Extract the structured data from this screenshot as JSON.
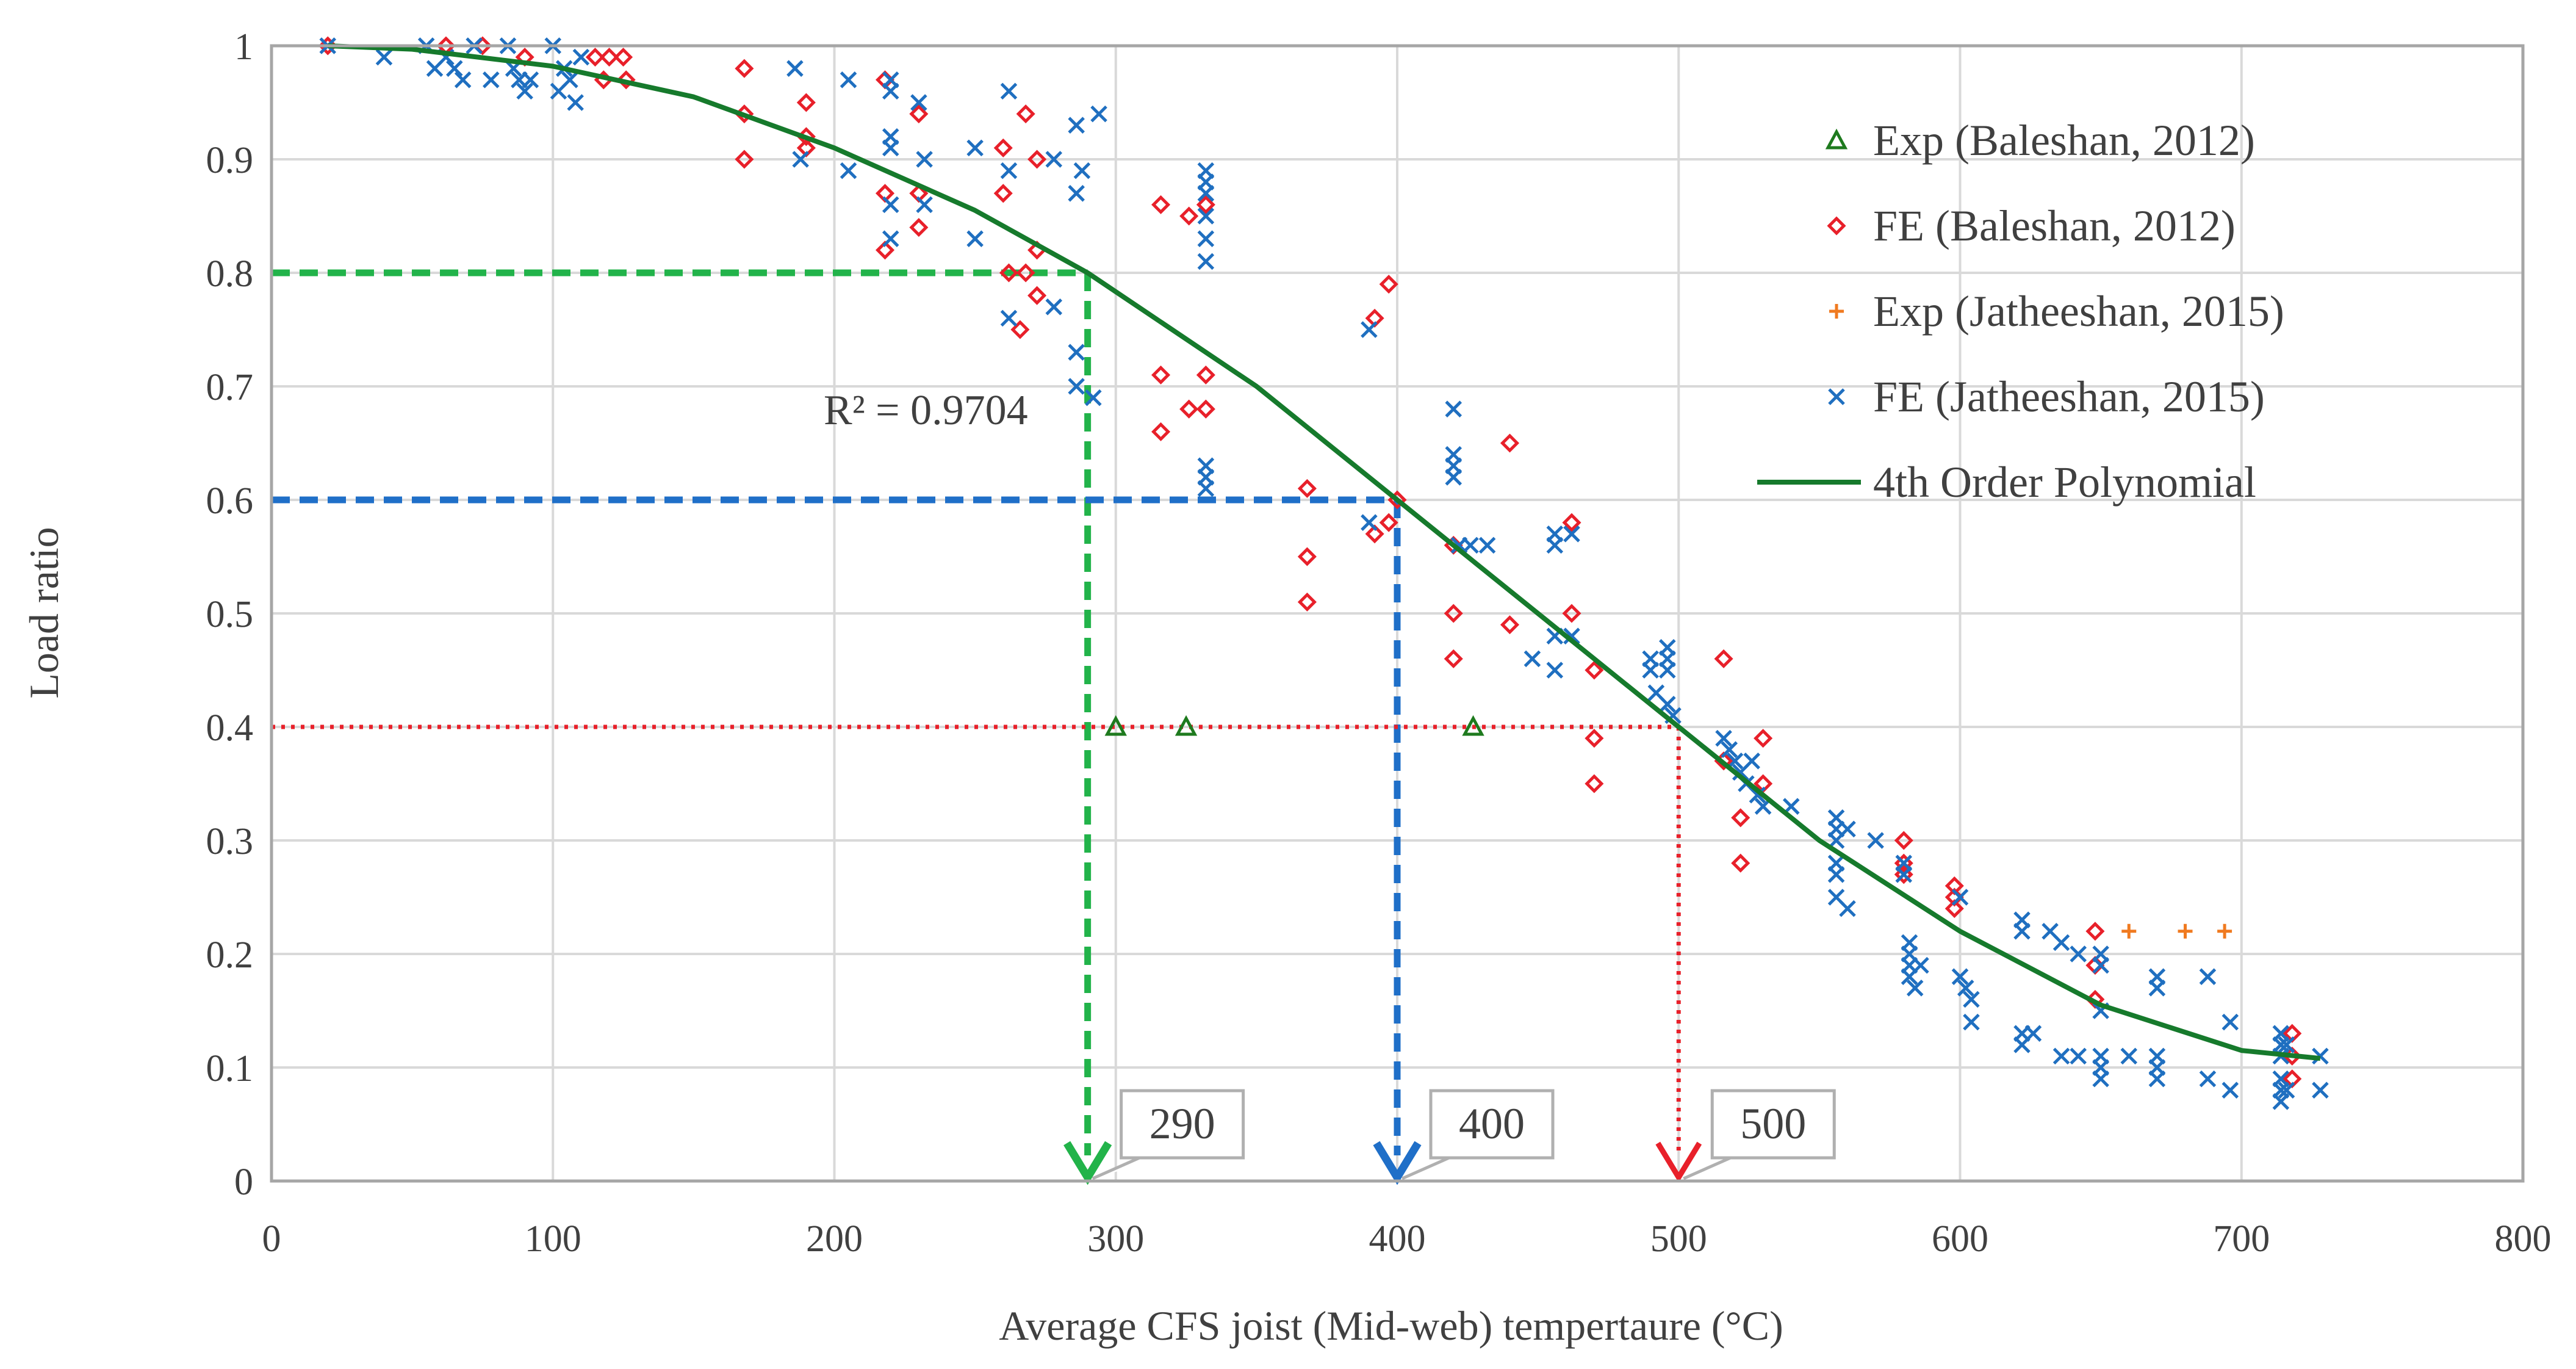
{
  "chart_data": {
    "type": "scatter",
    "title": "",
    "xlabel": "Average CFS joist (Mid-web) tempertaure (°C)",
    "ylabel": "Load ratio",
    "xlim": [
      0,
      800
    ],
    "ylim": [
      0,
      1
    ],
    "x_ticks": [
      "0",
      "100",
      "200",
      "300",
      "400",
      "500",
      "600",
      "700",
      "800"
    ],
    "y_ticks": [
      "0",
      "0.1",
      "0.2",
      "0.3",
      "0.4",
      "0.5",
      "0.6",
      "0.7",
      "0.8",
      "0.9",
      "1"
    ],
    "grid": true,
    "legend_position": "top-right",
    "colors": {
      "exp_baleshan": "#1e7a1e",
      "fe_baleshan": "#e8202a",
      "exp_jatheeshan": "#f07a20",
      "fe_jatheeshan": "#1f6fc0",
      "polynomial": "#167a2c",
      "guide_green": "#22b34a",
      "guide_blue": "#1f6fc8",
      "guide_red": "#e8202a",
      "grid": "#d9d9d9",
      "axis": "#a6a6a6"
    },
    "series": [
      {
        "name": "Exp (Baleshan, 2012)",
        "marker": "triangle",
        "points": [
          [
            300,
            0.4
          ],
          [
            325,
            0.4
          ],
          [
            427,
            0.4
          ]
        ]
      },
      {
        "name": "FE (Baleshan, 2012)",
        "marker": "diamond",
        "points": [
          [
            20,
            1.0
          ],
          [
            62,
            1.0
          ],
          [
            75,
            1.0
          ],
          [
            90,
            0.99
          ],
          [
            115,
            0.99
          ],
          [
            120,
            0.99
          ],
          [
            125,
            0.99
          ],
          [
            118,
            0.97
          ],
          [
            126,
            0.97
          ],
          [
            168,
            0.98
          ],
          [
            168,
            0.94
          ],
          [
            168,
            0.9
          ],
          [
            190,
            0.95
          ],
          [
            190,
            0.92
          ],
          [
            190,
            0.91
          ],
          [
            218,
            0.97
          ],
          [
            218,
            0.87
          ],
          [
            230,
            0.94
          ],
          [
            230,
            0.87
          ],
          [
            230,
            0.84
          ],
          [
            218,
            0.82
          ],
          [
            260,
            0.91
          ],
          [
            260,
            0.87
          ],
          [
            268,
            0.94
          ],
          [
            272,
            0.9
          ],
          [
            272,
            0.82
          ],
          [
            262,
            0.8
          ],
          [
            268,
            0.8
          ],
          [
            272,
            0.78
          ],
          [
            266,
            0.75
          ],
          [
            316,
            0.86
          ],
          [
            326,
            0.85
          ],
          [
            332,
            0.86
          ],
          [
            316,
            0.71
          ],
          [
            316,
            0.66
          ],
          [
            326,
            0.68
          ],
          [
            332,
            0.71
          ],
          [
            332,
            0.68
          ],
          [
            368,
            0.61
          ],
          [
            368,
            0.55
          ],
          [
            368,
            0.51
          ],
          [
            392,
            0.76
          ],
          [
            397,
            0.79
          ],
          [
            392,
            0.57
          ],
          [
            397,
            0.58
          ],
          [
            400,
            0.6
          ],
          [
            420,
            0.56
          ],
          [
            420,
            0.5
          ],
          [
            420,
            0.46
          ],
          [
            440,
            0.65
          ],
          [
            440,
            0.49
          ],
          [
            462,
            0.58
          ],
          [
            462,
            0.5
          ],
          [
            470,
            0.45
          ],
          [
            470,
            0.39
          ],
          [
            470,
            0.35
          ],
          [
            516,
            0.46
          ],
          [
            516,
            0.37
          ],
          [
            522,
            0.32
          ],
          [
            522,
            0.28
          ],
          [
            530,
            0.39
          ],
          [
            530,
            0.35
          ],
          [
            580,
            0.3
          ],
          [
            580,
            0.28
          ],
          [
            580,
            0.27
          ],
          [
            598,
            0.26
          ],
          [
            598,
            0.25
          ],
          [
            598,
            0.24
          ],
          [
            648,
            0.22
          ],
          [
            648,
            0.19
          ],
          [
            648,
            0.16
          ],
          [
            718,
            0.13
          ],
          [
            718,
            0.11
          ],
          [
            718,
            0.09
          ]
        ]
      },
      {
        "name": "Exp (Jatheeshan, 2015)",
        "marker": "plus",
        "points": [
          [
            660,
            0.22
          ],
          [
            680,
            0.22
          ],
          [
            694,
            0.22
          ]
        ]
      },
      {
        "name": "FE (Jatheeshan, 2015)",
        "marker": "cross",
        "points": [
          [
            20,
            1.0
          ],
          [
            40,
            0.99
          ],
          [
            55,
            1.0
          ],
          [
            58,
            0.98
          ],
          [
            62,
            0.99
          ],
          [
            65,
            0.98
          ],
          [
            68,
            0.97
          ],
          [
            72,
            1.0
          ],
          [
            78,
            0.97
          ],
          [
            84,
            1.0
          ],
          [
            86,
            0.98
          ],
          [
            88,
            0.97
          ],
          [
            90,
            0.96
          ],
          [
            92,
            0.97
          ],
          [
            100,
            1.0
          ],
          [
            102,
            0.96
          ],
          [
            104,
            0.98
          ],
          [
            106,
            0.97
          ],
          [
            108,
            0.95
          ],
          [
            110,
            0.99
          ],
          [
            186,
            0.98
          ],
          [
            188,
            0.9
          ],
          [
            205,
            0.97
          ],
          [
            205,
            0.89
          ],
          [
            220,
            0.97
          ],
          [
            220,
            0.96
          ],
          [
            220,
            0.92
          ],
          [
            220,
            0.91
          ],
          [
            220,
            0.86
          ],
          [
            220,
            0.83
          ],
          [
            230,
            0.95
          ],
          [
            232,
            0.9
          ],
          [
            232,
            0.86
          ],
          [
            250,
            0.91
          ],
          [
            250,
            0.83
          ],
          [
            262,
            0.96
          ],
          [
            262,
            0.89
          ],
          [
            262,
            0.76
          ],
          [
            278,
            0.9
          ],
          [
            278,
            0.77
          ],
          [
            286,
            0.93
          ],
          [
            288,
            0.89
          ],
          [
            286,
            0.87
          ],
          [
            286,
            0.73
          ],
          [
            286,
            0.7
          ],
          [
            294,
            0.94
          ],
          [
            292,
            0.69
          ],
          [
            332,
            0.89
          ],
          [
            332,
            0.88
          ],
          [
            332,
            0.87
          ],
          [
            332,
            0.85
          ],
          [
            332,
            0.83
          ],
          [
            332,
            0.81
          ],
          [
            332,
            0.63
          ],
          [
            332,
            0.62
          ],
          [
            332,
            0.61
          ],
          [
            390,
            0.75
          ],
          [
            390,
            0.58
          ],
          [
            420,
            0.68
          ],
          [
            420,
            0.64
          ],
          [
            420,
            0.63
          ],
          [
            420,
            0.62
          ],
          [
            422,
            0.56
          ],
          [
            426,
            0.56
          ],
          [
            432,
            0.56
          ],
          [
            448,
            0.46
          ],
          [
            456,
            0.57
          ],
          [
            456,
            0.56
          ],
          [
            456,
            0.48
          ],
          [
            456,
            0.45
          ],
          [
            462,
            0.57
          ],
          [
            462,
            0.48
          ],
          [
            490,
            0.46
          ],
          [
            490,
            0.45
          ],
          [
            492,
            0.43
          ],
          [
            496,
            0.47
          ],
          [
            496,
            0.46
          ],
          [
            496,
            0.45
          ],
          [
            496,
            0.42
          ],
          [
            498,
            0.41
          ],
          [
            516,
            0.39
          ],
          [
            518,
            0.38
          ],
          [
            520,
            0.37
          ],
          [
            522,
            0.36
          ],
          [
            524,
            0.35
          ],
          [
            526,
            0.37
          ],
          [
            528,
            0.34
          ],
          [
            530,
            0.33
          ],
          [
            540,
            0.33
          ],
          [
            556,
            0.32
          ],
          [
            556,
            0.31
          ],
          [
            556,
            0.3
          ],
          [
            556,
            0.28
          ],
          [
            556,
            0.27
          ],
          [
            556,
            0.25
          ],
          [
            560,
            0.31
          ],
          [
            560,
            0.24
          ],
          [
            570,
            0.3
          ],
          [
            580,
            0.28
          ],
          [
            580,
            0.27
          ],
          [
            582,
            0.21
          ],
          [
            582,
            0.2
          ],
          [
            582,
            0.19
          ],
          [
            582,
            0.18
          ],
          [
            584,
            0.17
          ],
          [
            586,
            0.19
          ],
          [
            600,
            0.25
          ],
          [
            600,
            0.18
          ],
          [
            602,
            0.17
          ],
          [
            604,
            0.16
          ],
          [
            604,
            0.14
          ],
          [
            622,
            0.23
          ],
          [
            622,
            0.22
          ],
          [
            622,
            0.13
          ],
          [
            622,
            0.12
          ],
          [
            626,
            0.13
          ],
          [
            632,
            0.22
          ],
          [
            636,
            0.21
          ],
          [
            636,
            0.11
          ],
          [
            642,
            0.2
          ],
          [
            642,
            0.11
          ],
          [
            650,
            0.2
          ],
          [
            650,
            0.19
          ],
          [
            650,
            0.15
          ],
          [
            650,
            0.11
          ],
          [
            650,
            0.1
          ],
          [
            650,
            0.09
          ],
          [
            660,
            0.11
          ],
          [
            670,
            0.18
          ],
          [
            670,
            0.17
          ],
          [
            670,
            0.11
          ],
          [
            670,
            0.1
          ],
          [
            670,
            0.09
          ],
          [
            688,
            0.18
          ],
          [
            688,
            0.09
          ],
          [
            696,
            0.14
          ],
          [
            696,
            0.08
          ],
          [
            714,
            0.13
          ],
          [
            714,
            0.12
          ],
          [
            714,
            0.11
          ],
          [
            714,
            0.09
          ],
          [
            714,
            0.08
          ],
          [
            714,
            0.07
          ],
          [
            716,
            0.12
          ],
          [
            716,
            0.08
          ],
          [
            728,
            0.11
          ],
          [
            728,
            0.08
          ]
        ]
      },
      {
        "name": "4th Order Polynomial",
        "type": "line",
        "points": [
          [
            20,
            1.0
          ],
          [
            50,
            0.997
          ],
          [
            100,
            0.982
          ],
          [
            150,
            0.955
          ],
          [
            200,
            0.91
          ],
          [
            250,
            0.855
          ],
          [
            290,
            0.8
          ],
          [
            350,
            0.7
          ],
          [
            400,
            0.6
          ],
          [
            450,
            0.5
          ],
          [
            500,
            0.4
          ],
          [
            550,
            0.3
          ],
          [
            600,
            0.22
          ],
          [
            650,
            0.155
          ],
          [
            700,
            0.115
          ],
          [
            728,
            0.108
          ]
        ]
      }
    ],
    "guide_lines": [
      {
        "color": "green",
        "y": 0.8,
        "x": 290,
        "label": "290"
      },
      {
        "color": "blue",
        "y": 0.6,
        "x": 400,
        "label": "400"
      },
      {
        "color": "red",
        "y": 0.4,
        "x": 500,
        "label": "500"
      }
    ],
    "annotations": {
      "r_squared": "R² = 0.9704"
    }
  }
}
